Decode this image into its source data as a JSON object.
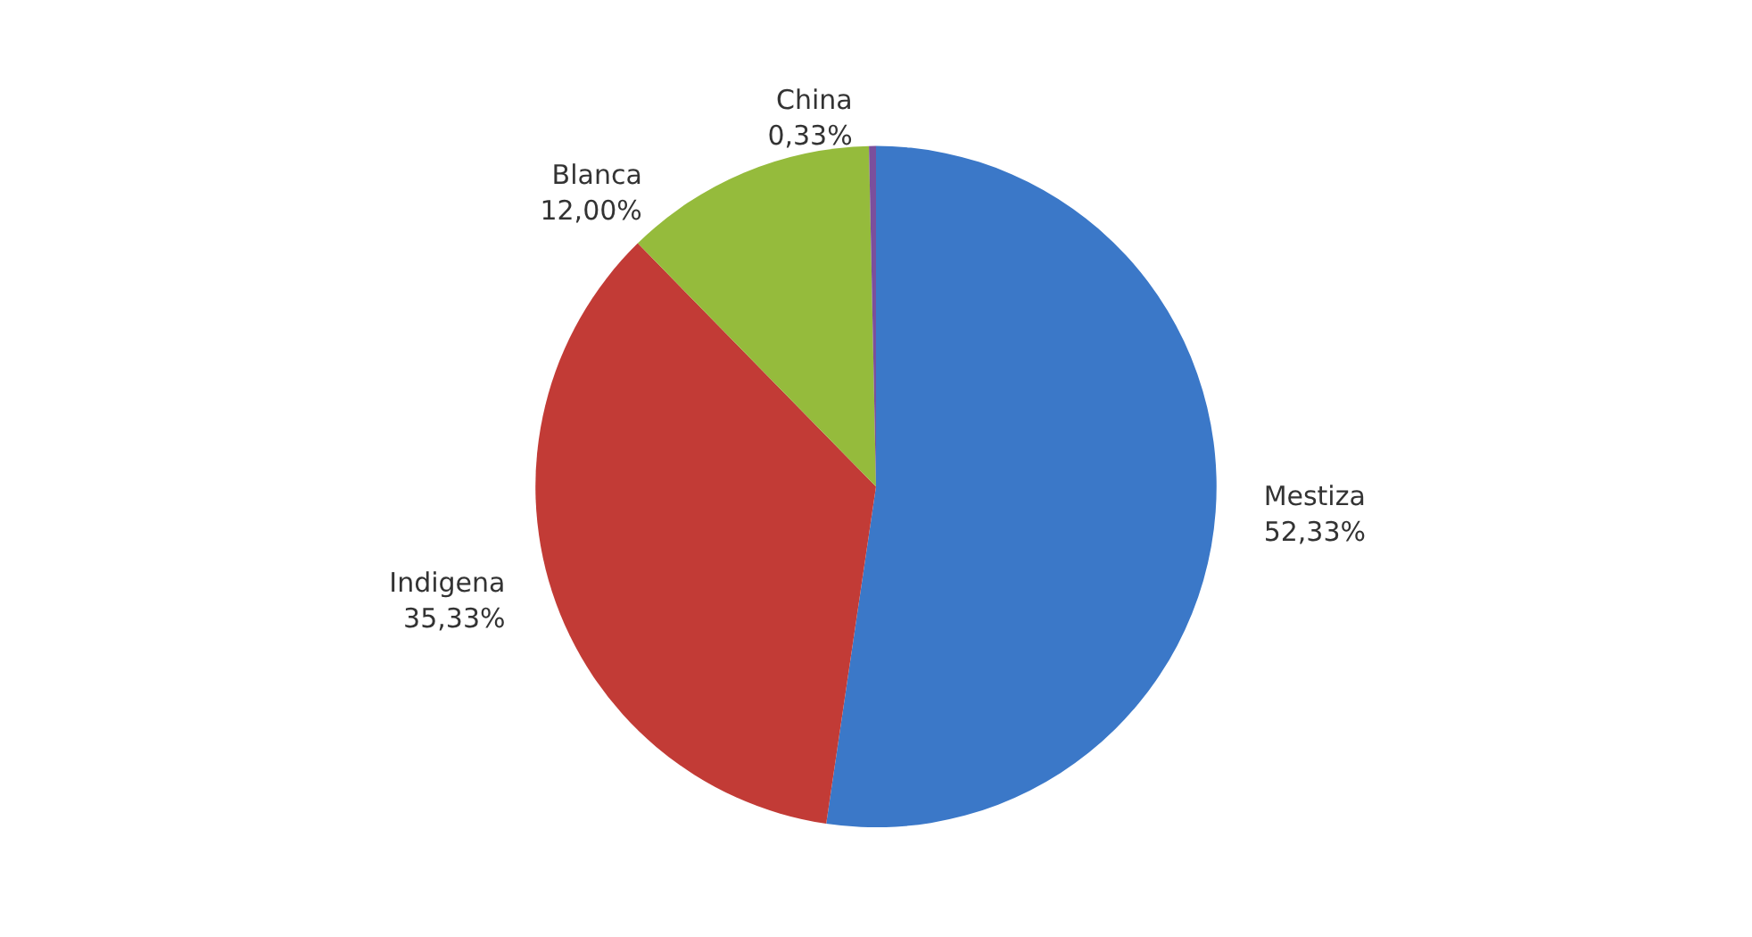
{
  "chart_data": {
    "type": "pie",
    "categories": [
      "Mestiza",
      "Indigena",
      "Blanca",
      "China"
    ],
    "values": [
      52.33,
      35.33,
      12.0,
      0.33
    ],
    "value_labels": [
      "52,33%",
      "35,33%",
      "12,00%",
      "0,33%"
    ],
    "colors": [
      "#3b78c8",
      "#c23b36",
      "#95bb3c",
      "#7b4f9c"
    ],
    "legend": false
  }
}
